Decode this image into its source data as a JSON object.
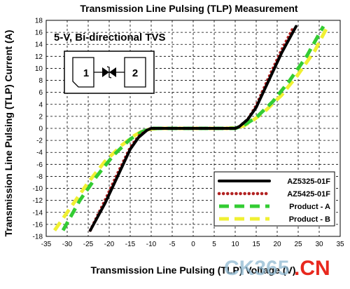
{
  "chart_data": {
    "type": "line",
    "title": "Transmission Line Pulsing (TLP) Measurement",
    "xlabel": "Transmission Line Pulsing (TLP) Voltage (V)",
    "ylabel": "Transmission Line Pulsing (TLP) Current (A)",
    "xlim": [
      -35,
      35
    ],
    "ylim": [
      -18,
      18
    ],
    "xticks": [
      "-35",
      "-30",
      "-25",
      "-20",
      "-15",
      "-10",
      "-5",
      "0",
      "5",
      "10",
      "15",
      "20",
      "25",
      "30",
      "35"
    ],
    "yticks": [
      "-18",
      "-16",
      "-14",
      "-12",
      "-10",
      "-8",
      "-6",
      "-4",
      "-2",
      "0",
      "2",
      "4",
      "6",
      "8",
      "10",
      "12",
      "14",
      "16",
      "18"
    ],
    "grid": true,
    "annotation": "5-V, Bi-directional TVS",
    "symbol_pins": [
      "1",
      "2"
    ],
    "legend_position": "bottom-right",
    "series": [
      {
        "name": "AZ5325-01F",
        "color": "#000000",
        "style": "solid",
        "x": [
          -24.5,
          -21,
          -18,
          -15,
          -13,
          -11,
          -10,
          -9,
          -5,
          0,
          5,
          9,
          10,
          11,
          13,
          15,
          18,
          21,
          24.5
        ],
        "y": [
          -17,
          -12.5,
          -8,
          -3.5,
          -1.5,
          -0.3,
          0,
          0,
          0,
          0,
          0,
          0,
          0,
          0.3,
          1.5,
          3.5,
          8,
          12.5,
          17
        ]
      },
      {
        "name": "AZ5425-01F",
        "color": "#b22222",
        "style": "dotted",
        "x": [
          -24.5,
          -21,
          -18,
          -15,
          -13,
          -11,
          -10,
          -9,
          -5,
          0,
          5,
          9,
          10,
          11,
          13,
          15,
          18,
          21,
          24
        ],
        "y": [
          -17,
          -12,
          -7.5,
          -3.2,
          -1.3,
          -0.3,
          0,
          0,
          0,
          0,
          0,
          0,
          0,
          0.3,
          1.5,
          3.8,
          8.5,
          13,
          17
        ]
      },
      {
        "name": "Product - A",
        "color": "#33cc33",
        "style": "dashed",
        "x": [
          -31,
          -27,
          -23,
          -19,
          -15,
          -12,
          -10,
          -8,
          0,
          8,
          10,
          12,
          15,
          19,
          23,
          27,
          31
        ],
        "y": [
          -17,
          -12,
          -8,
          -4.5,
          -1.8,
          -0.5,
          0,
          0,
          0,
          0,
          0,
          0.5,
          1.8,
          4.5,
          8,
          12,
          17
        ]
      },
      {
        "name": "Product - B",
        "color": "#f0f032",
        "style": "dashed",
        "x": [
          -33,
          -29,
          -25,
          -21,
          -17,
          -14,
          -12,
          -10,
          -8,
          0,
          8,
          10,
          12,
          14,
          17,
          21,
          25,
          29,
          32
        ],
        "y": [
          -17,
          -13,
          -9,
          -5.5,
          -2.8,
          -1.2,
          -0.4,
          -0.1,
          0,
          0,
          0,
          0.1,
          0.4,
          1.2,
          2.8,
          5.5,
          9,
          13,
          17
        ]
      }
    ]
  },
  "watermark": {
    "text_gray": "CK365",
    "text_red": ".CN"
  }
}
